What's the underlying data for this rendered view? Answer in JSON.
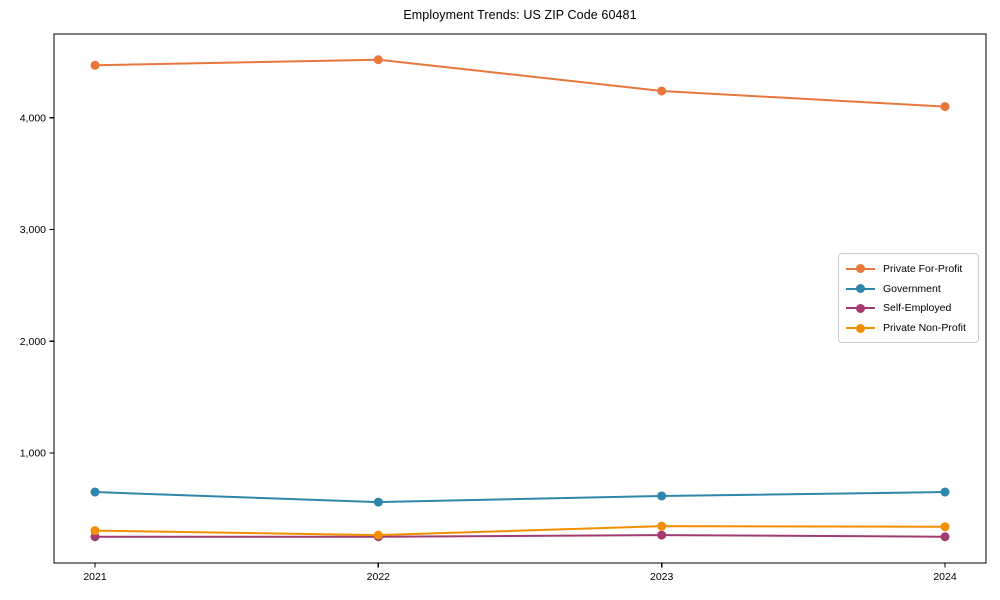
{
  "chart_data": {
    "type": "line",
    "title": "Employment Trends: US ZIP Code 60481",
    "xlabel": "",
    "ylabel": "",
    "categories": [
      "2021",
      "2022",
      "2023",
      "2024"
    ],
    "series": [
      {
        "name": "Private For-Profit",
        "color": "#E8773D",
        "values": [
          4470,
          4520,
          4240,
          4100
        ]
      },
      {
        "name": "Government",
        "color": "#2E86AB",
        "values": [
          650,
          560,
          615,
          650
        ]
      },
      {
        "name": "Self-Employed",
        "color": "#A23B72",
        "values": [
          250,
          250,
          265,
          250
        ]
      },
      {
        "name": "Private Non-Profit",
        "color": "#F18F01",
        "values": [
          305,
          265,
          345,
          340
        ]
      }
    ],
    "ylim": [
      15,
      4750
    ],
    "yticks": [
      1000,
      2000,
      3000,
      4000
    ],
    "ytick_labels": [
      "1,000",
      "2,000",
      "3,000",
      "4,000"
    ],
    "grid": false,
    "legend_position": "center-right"
  },
  "colors": {
    "background": "#ffffff",
    "axis": "#000000",
    "tick_text": "#000000",
    "legend_border": "#cccccc"
  }
}
